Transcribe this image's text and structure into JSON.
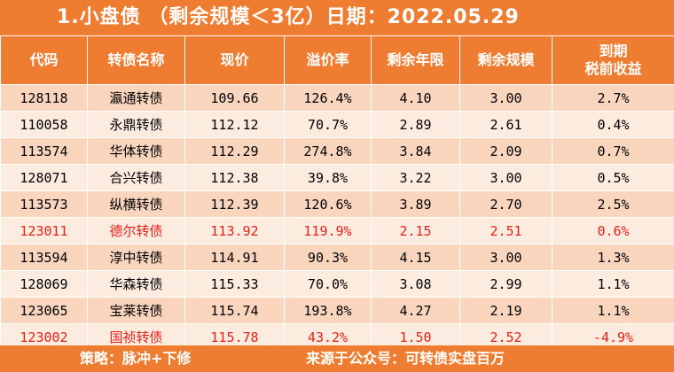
{
  "title": "1.小盘债  （剩余规模＜3亿）日期：2022.05.29",
  "headers": [
    "代码",
    "转债名称",
    "现价",
    "溢价率",
    "剩余年限",
    "剩余规模",
    "到期",
    "税前收益"
  ],
  "rows": [
    {
      "code": "128118",
      "name": "瀛通转债",
      "price": "109.66",
      "premium": "126.4%",
      "years": "4.10",
      "size": "3.00",
      "ytm": "2.7%",
      "highlight": false
    },
    {
      "code": "110058",
      "name": "永鼎转债",
      "price": "112.12",
      "premium": "70.7%",
      "years": "2.89",
      "size": "2.61",
      "ytm": "0.4%",
      "highlight": false
    },
    {
      "code": "113574",
      "name": "华体转债",
      "price": "112.29",
      "premium": "274.8%",
      "years": "3.84",
      "size": "2.09",
      "ytm": "0.7%",
      "highlight": false
    },
    {
      "code": "128071",
      "name": "合兴转债",
      "price": "112.38",
      "premium": "39.8%",
      "years": "3.22",
      "size": "3.00",
      "ytm": "0.5%",
      "highlight": false
    },
    {
      "code": "113573",
      "name": "纵横转债",
      "price": "112.39",
      "premium": "120.6%",
      "years": "3.89",
      "size": "2.70",
      "ytm": "2.5%",
      "highlight": false
    },
    {
      "code": "123011",
      "name": "德尔转债",
      "price": "113.92",
      "premium": "119.9%",
      "years": "2.15",
      "size": "2.51",
      "ytm": "0.6%",
      "highlight": true
    },
    {
      "code": "113594",
      "name": "淳中转债",
      "price": "114.91",
      "premium": "90.3%",
      "years": "4.15",
      "size": "3.00",
      "ytm": "1.3%",
      "highlight": false
    },
    {
      "code": "128069",
      "name": "华森转债",
      "price": "115.33",
      "premium": "70.0%",
      "years": "3.08",
      "size": "2.99",
      "ytm": "1.1%",
      "highlight": false
    },
    {
      "code": "123065",
      "name": "宝莱转债",
      "price": "115.74",
      "premium": "193.8%",
      "years": "4.27",
      "size": "2.19",
      "ytm": "1.1%",
      "highlight": false
    },
    {
      "code": "123002",
      "name": "国祯转债",
      "price": "115.78",
      "premium": "43.2%",
      "years": "1.50",
      "size": "2.52",
      "ytm": "-4.9%",
      "highlight": true
    }
  ],
  "footer": {
    "strategy": "策略：脉冲+下修",
    "source": "来源于公众号：可转债实盘百万"
  },
  "colors": {
    "header_bg": "#ef7d31",
    "row_odd": "#fad5bd",
    "row_even": "#fcebdf",
    "highlight_text": "#e8201a"
  }
}
